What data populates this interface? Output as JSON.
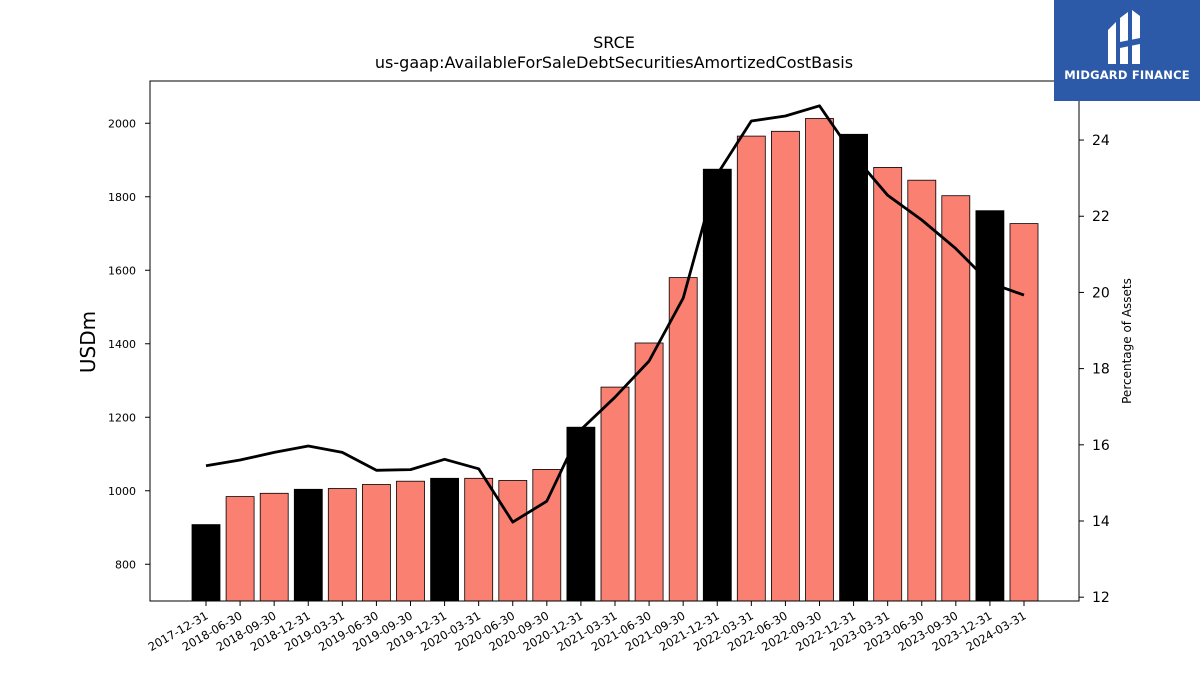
{
  "brand": {
    "name": "MIDGARD FINANCE",
    "bg_color": "#2d5aa8"
  },
  "chart_data": {
    "type": "bar",
    "title": "SRCE",
    "subtitle": "us-gaap:AvailableForSaleDebtSecuritiesAmortizedCostBasis",
    "ylabel": "USDm",
    "y2label": "Percentage of Assets",
    "ylim": [
      700,
      2115
    ],
    "y2lim": [
      11.9,
      25.55
    ],
    "yticks": [
      800,
      1000,
      1200,
      1400,
      1600,
      1800,
      2000
    ],
    "y2ticks": [
      12,
      14,
      16,
      18,
      20,
      22,
      24
    ],
    "categories": [
      "2017-12-31",
      "2018-06-30",
      "2018-09-30",
      "2018-12-31",
      "2019-03-31",
      "2019-06-30",
      "2019-09-30",
      "2019-12-31",
      "2020-03-31",
      "2020-06-30",
      "2020-09-30",
      "2020-12-31",
      "2021-03-31",
      "2021-06-30",
      "2021-09-30",
      "2021-12-31",
      "2022-03-31",
      "2022-06-30",
      "2022-09-30",
      "2022-12-31",
      "2023-03-31",
      "2023-06-30",
      "2023-09-30",
      "2023-12-31",
      "2024-03-31"
    ],
    "series": [
      {
        "type": "bar",
        "axis": "left",
        "values": [
          908,
          984,
          993,
          1004,
          1006,
          1017,
          1026,
          1034,
          1034,
          1028,
          1058,
          1173,
          1282,
          1402,
          1580,
          1875,
          1965,
          1978,
          2013,
          1970,
          1880,
          1845,
          1803,
          1762,
          1727
        ],
        "annual": [
          true,
          false,
          false,
          true,
          false,
          false,
          false,
          true,
          false,
          false,
          false,
          true,
          false,
          false,
          false,
          true,
          false,
          false,
          false,
          true,
          false,
          false,
          false,
          true,
          false
        ]
      },
      {
        "type": "line",
        "axis": "right",
        "values": [
          15.45,
          15.6,
          15.8,
          15.97,
          15.8,
          15.33,
          15.35,
          15.62,
          15.37,
          13.97,
          14.52,
          16.4,
          17.25,
          18.2,
          19.85,
          23.1,
          24.5,
          24.63,
          24.9,
          23.6,
          22.55,
          21.9,
          21.15,
          20.25,
          19.93
        ]
      }
    ],
    "colors": {
      "annual_bar": "#000000",
      "quarter_bar": "#fa8072",
      "line": "#000000"
    }
  }
}
